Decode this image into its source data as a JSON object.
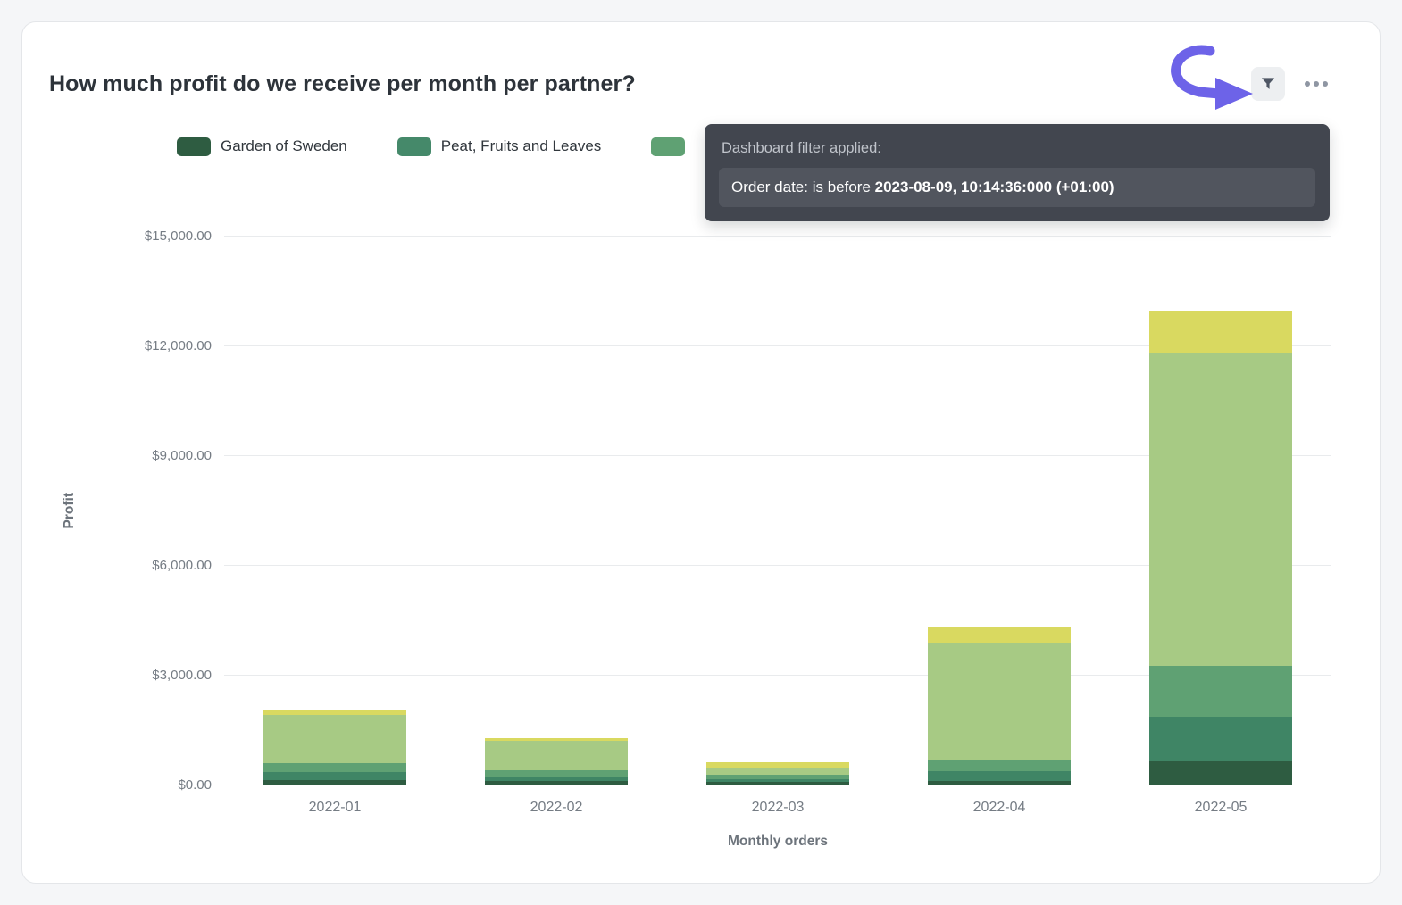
{
  "card": {
    "title": "How much profit do we receive per month per partner?"
  },
  "icons": {
    "filter": "funnel-icon",
    "more": "ellipsis-icon",
    "annotation": "curved-arrow-icon"
  },
  "colors": {
    "annotation_arrow": "#6d63e8",
    "tooltip_bg": "#42464f",
    "tooltip_pill_bg": "#51555e",
    "card_bg": "#ffffff",
    "page_bg": "#f5f6f8"
  },
  "legend": {
    "items": [
      {
        "label": "Garden of Sweden",
        "color": "#2e5c41"
      },
      {
        "label": "Peat, Fruits and Leaves",
        "color": "#45896a"
      },
      {
        "label": "",
        "color": "#5fa173"
      }
    ]
  },
  "tooltip": {
    "header": "Dashboard filter applied:",
    "filter_prefix": "Order date: is before ",
    "filter_value": "2023-08-09, 10:14:36:000 (+01:00)"
  },
  "chart_data": {
    "type": "bar",
    "stacked": true,
    "title": "How much profit do we receive per month per partner?",
    "xlabel": "Monthly orders",
    "ylabel": "Profit",
    "ylim": [
      0,
      15000
    ],
    "grid": true,
    "legend_position": "top",
    "yticks": [
      {
        "value": 0,
        "label": "$0.00"
      },
      {
        "value": 3000,
        "label": "$3,000.00"
      },
      {
        "value": 6000,
        "label": "$6,000.00"
      },
      {
        "value": 9000,
        "label": "$9,000.00"
      },
      {
        "value": 12000,
        "label": "$12,000.00"
      },
      {
        "value": 15000,
        "label": "$15,000.00"
      }
    ],
    "categories": [
      "2022-01",
      "2022-02",
      "2022-03",
      "2022-04",
      "2022-05"
    ],
    "series": [
      {
        "name": "Garden of Sweden",
        "color": "#2e5c41",
        "values": [
          150,
          120,
          100,
          120,
          660
        ]
      },
      {
        "name": "Peat, Fruits and Leaves",
        "color": "#3f8565",
        "values": [
          225,
          90,
          60,
          270,
          1220
        ]
      },
      {
        "name": "",
        "color": "#5fa173",
        "values": [
          225,
          210,
          130,
          315,
          1390
        ]
      },
      {
        "name": "",
        "color": "#a7ca84",
        "values": [
          1325,
          800,
          175,
          3195,
          8535
        ]
      },
      {
        "name": "",
        "color": "#d9d960",
        "values": [
          150,
          75,
          170,
          415,
          1170
        ]
      }
    ]
  }
}
